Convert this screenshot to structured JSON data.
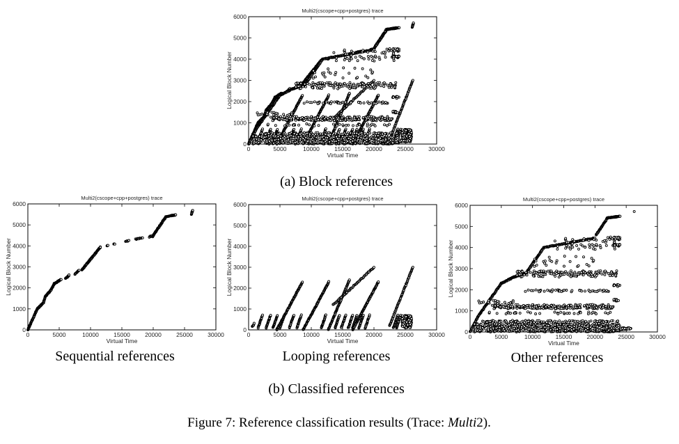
{
  "figure": {
    "caption_prefix": "Figure 7: Reference classification results (Trace: ",
    "caption_math": "Multi",
    "caption_suffix": "2).",
    "subcaption_a": "(a) Block references",
    "subcaption_b": "(b) Classified references",
    "label_sequential": "Sequential references",
    "label_looping": "Looping references",
    "label_other": "Other references"
  },
  "chart_data": [
    {
      "id": "block",
      "type": "scatter",
      "title": "Multi2(cscope+cpp+postgres) trace",
      "xlabel": "Virtual Time",
      "ylabel": "Logical Block Number",
      "xlim": [
        0,
        30000
      ],
      "ylim": [
        0,
        6000
      ],
      "xticks": [
        "0",
        "5000",
        "10000",
        "15000",
        "20000",
        "25000",
        "30000"
      ],
      "yticks": [
        "0",
        "1000",
        "2000",
        "3000",
        "4000",
        "5000",
        "6000"
      ],
      "grid": false,
      "union_of": [
        "sequential",
        "looping",
        "other"
      ]
    },
    {
      "id": "sequential",
      "type": "scatter",
      "title": "Multi2(cscope+cpp+postgres) trace",
      "xlabel": "Virtual Time",
      "ylabel": "Logical Block Number",
      "xlim": [
        0,
        30000
      ],
      "ylim": [
        0,
        6000
      ],
      "xticks": [
        "0",
        "5000",
        "10000",
        "15000",
        "20000",
        "25000",
        "30000"
      ],
      "yticks": [
        "0",
        "1000",
        "2000",
        "3000",
        "4000",
        "5000",
        "6000"
      ],
      "grid": false,
      "segments": [
        [
          0,
          0,
          1500,
          1000,
          60
        ],
        [
          1500,
          1000,
          2500,
          1300,
          30
        ],
        [
          2500,
          1300,
          2800,
          1600,
          15
        ],
        [
          2800,
          1600,
          3700,
          1900,
          30
        ],
        [
          3700,
          1900,
          4200,
          2200,
          20
        ],
        [
          4200,
          2200,
          5300,
          2400,
          30
        ],
        [
          6000,
          2450,
          6600,
          2600,
          15
        ],
        [
          7500,
          2650,
          8200,
          2850,
          15
        ],
        [
          8600,
          2850,
          11600,
          3950,
          90
        ],
        [
          12600,
          4000,
          12800,
          4010,
          4
        ],
        [
          13700,
          4080,
          13900,
          4100,
          4
        ],
        [
          15600,
          4220,
          16100,
          4250,
          6
        ],
        [
          17200,
          4320,
          18300,
          4380,
          12
        ],
        [
          19400,
          4430,
          19800,
          4480,
          6
        ],
        [
          19900,
          4450,
          22000,
          5380,
          70
        ],
        [
          22100,
          5400,
          23600,
          5480,
          30
        ],
        [
          26100,
          5500,
          26300,
          5700,
          10
        ]
      ],
      "bands": []
    },
    {
      "id": "looping",
      "type": "scatter",
      "title": "Multi2(cscope+cpp+postgres) trace",
      "xlabel": "Virtual Time",
      "ylabel": "Logical Block Number",
      "xlim": [
        0,
        30000
      ],
      "ylim": [
        0,
        6000
      ],
      "xticks": [
        "0",
        "5000",
        "10000",
        "15000",
        "20000",
        "25000",
        "30000"
      ],
      "yticks": [
        "0",
        "1000",
        "2000",
        "3000",
        "4000",
        "5000",
        "6000"
      ],
      "grid": false,
      "segments": [
        [
          600,
          150,
          900,
          300,
          6
        ],
        [
          1500,
          100,
          2200,
          700,
          20
        ],
        [
          2800,
          100,
          3500,
          700,
          20
        ],
        [
          3900,
          100,
          4600,
          700,
          20
        ],
        [
          5000,
          100,
          5700,
          700,
          20
        ],
        [
          6500,
          100,
          7200,
          700,
          20
        ],
        [
          7700,
          100,
          8400,
          700,
          20
        ],
        [
          11600,
          100,
          12300,
          700,
          20
        ],
        [
          13800,
          100,
          14500,
          700,
          20
        ],
        [
          14800,
          100,
          15500,
          700,
          20
        ],
        [
          15900,
          100,
          16600,
          700,
          20
        ],
        [
          16600,
          100,
          17300,
          700,
          20
        ],
        [
          17600,
          100,
          18300,
          700,
          20
        ],
        [
          18600,
          100,
          19300,
          700,
          20
        ],
        [
          23100,
          100,
          23800,
          700,
          20
        ],
        [
          23600,
          100,
          24300,
          700,
          20
        ],
        [
          4500,
          0,
          8600,
          2300,
          100
        ],
        [
          8700,
          0,
          12800,
          2300,
          100
        ],
        [
          12700,
          0,
          16100,
          2400,
          80
        ],
        [
          16600,
          0,
          20700,
          2300,
          100
        ],
        [
          13500,
          1200,
          20000,
          3000,
          60
        ],
        [
          22500,
          200,
          26200,
          3000,
          70
        ]
      ],
      "bands": [
        [
          24500,
          26000,
          100,
          700,
          200
        ]
      ]
    },
    {
      "id": "other",
      "type": "scatter",
      "title": "Multi2(cscope+cpp+postgres) trace",
      "xlabel": "Virtual Time",
      "ylabel": "Logical Block Number",
      "xlim": [
        0,
        30000
      ],
      "ylim": [
        0,
        6000
      ],
      "xticks": [
        "0",
        "5000",
        "10000",
        "15000",
        "20000",
        "25000",
        "30000"
      ],
      "yticks": [
        "0",
        "1000",
        "2000",
        "3000",
        "4000",
        "5000",
        "6000"
      ],
      "grid": false,
      "segments": [
        [
          0,
          0,
          1200,
          700,
          30
        ],
        [
          1200,
          700,
          5000,
          2300,
          80
        ],
        [
          5000,
          2300,
          7000,
          2600,
          40
        ],
        [
          7000,
          2600,
          9000,
          2800,
          40
        ],
        [
          9000,
          2800,
          11800,
          4000,
          60
        ],
        [
          11800,
          4000,
          20000,
          4450,
          100
        ],
        [
          20200,
          4600,
          22000,
          5400,
          40
        ],
        [
          22000,
          5400,
          24000,
          5480,
          40
        ],
        [
          26300,
          5700,
          26300,
          5700,
          1
        ]
      ],
      "bands": [
        [
          500,
          24000,
          0,
          400,
          700
        ],
        [
          2000,
          24000,
          450,
          550,
          120
        ],
        [
          3500,
          23000,
          1100,
          1300,
          250
        ],
        [
          3000,
          24000,
          850,
          950,
          40
        ],
        [
          8000,
          22500,
          1900,
          2000,
          50
        ],
        [
          7500,
          23500,
          2600,
          2900,
          150
        ],
        [
          13000,
          24000,
          3900,
          4500,
          60
        ],
        [
          10000,
          20000,
          3100,
          3600,
          25
        ],
        [
          23000,
          24000,
          4400,
          4500,
          20
        ],
        [
          23000,
          24000,
          4100,
          4150,
          20
        ],
        [
          23000,
          24000,
          2150,
          2250,
          12
        ],
        [
          23000,
          24000,
          1450,
          1550,
          10
        ],
        [
          24000,
          26000,
          100,
          200,
          30
        ],
        [
          1000,
          7000,
          1300,
          1500,
          20
        ]
      ]
    }
  ]
}
